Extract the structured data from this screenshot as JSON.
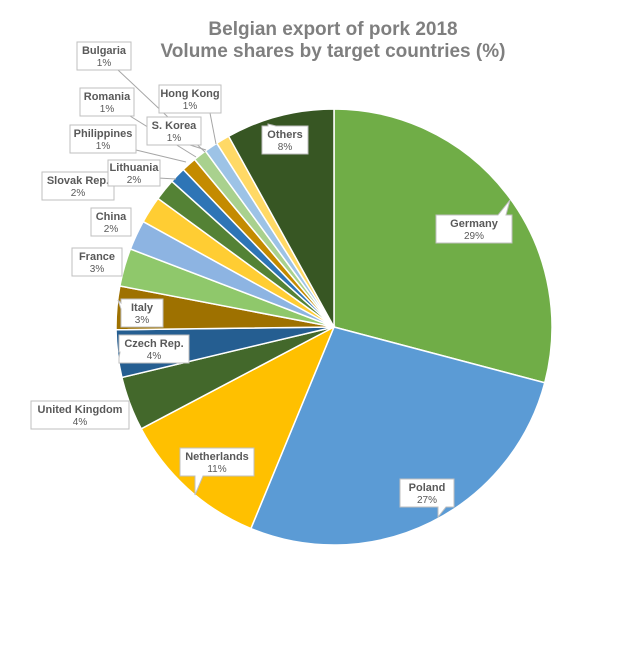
{
  "chart_data": {
    "type": "pie",
    "title": [
      "Belgian export of pork 2018",
      "Volume shares by target countries (%)"
    ],
    "unit": "%",
    "slices": [
      {
        "name": "Germany",
        "label": "29%",
        "value": 29.0,
        "color": "#70ad47"
      },
      {
        "name": "Poland",
        "label": "27%",
        "value": 27.0,
        "color": "#5b9bd5"
      },
      {
        "name": "Netherlands",
        "label": "11%",
        "value": 11.0,
        "color": "#ffc000"
      },
      {
        "name": "United Kingdom",
        "label": "4%",
        "value": 4.0,
        "color": "#43682b"
      },
      {
        "name": "Czech Rep.",
        "label": "4%",
        "value": 3.5,
        "color": "#255e91"
      },
      {
        "name": "Italy",
        "label": "3%",
        "value": 3.2,
        "color": "#9e7100"
      },
      {
        "name": "France",
        "label": "3%",
        "value": 2.8,
        "color": "#8fc86b"
      },
      {
        "name": "China",
        "label": "2%",
        "value": 2.2,
        "color": "#8db4e2"
      },
      {
        "name": "Slovak Rep.",
        "label": "2%",
        "value": 2.0,
        "color": "#ffcd33"
      },
      {
        "name": "Lithuania",
        "label": "2%",
        "value": 1.6,
        "color": "#548235"
      },
      {
        "name": "Philippines",
        "label": "1%",
        "value": 1.2,
        "color": "#2e75b6"
      },
      {
        "name": "Romania",
        "label": "1%",
        "value": 1.1,
        "color": "#c48b00"
      },
      {
        "name": "S. Korea",
        "label": "1%",
        "value": 1.0,
        "color": "#a9d18e"
      },
      {
        "name": "Bulgaria",
        "label": "1%",
        "value": 1.0,
        "color": "#9dc3e6"
      },
      {
        "name": "Hong Kong",
        "label": "1%",
        "value": 1.0,
        "color": "#ffd966"
      },
      {
        "name": "Others",
        "label": "8%",
        "value": 8.0,
        "color": "#375623"
      }
    ]
  }
}
